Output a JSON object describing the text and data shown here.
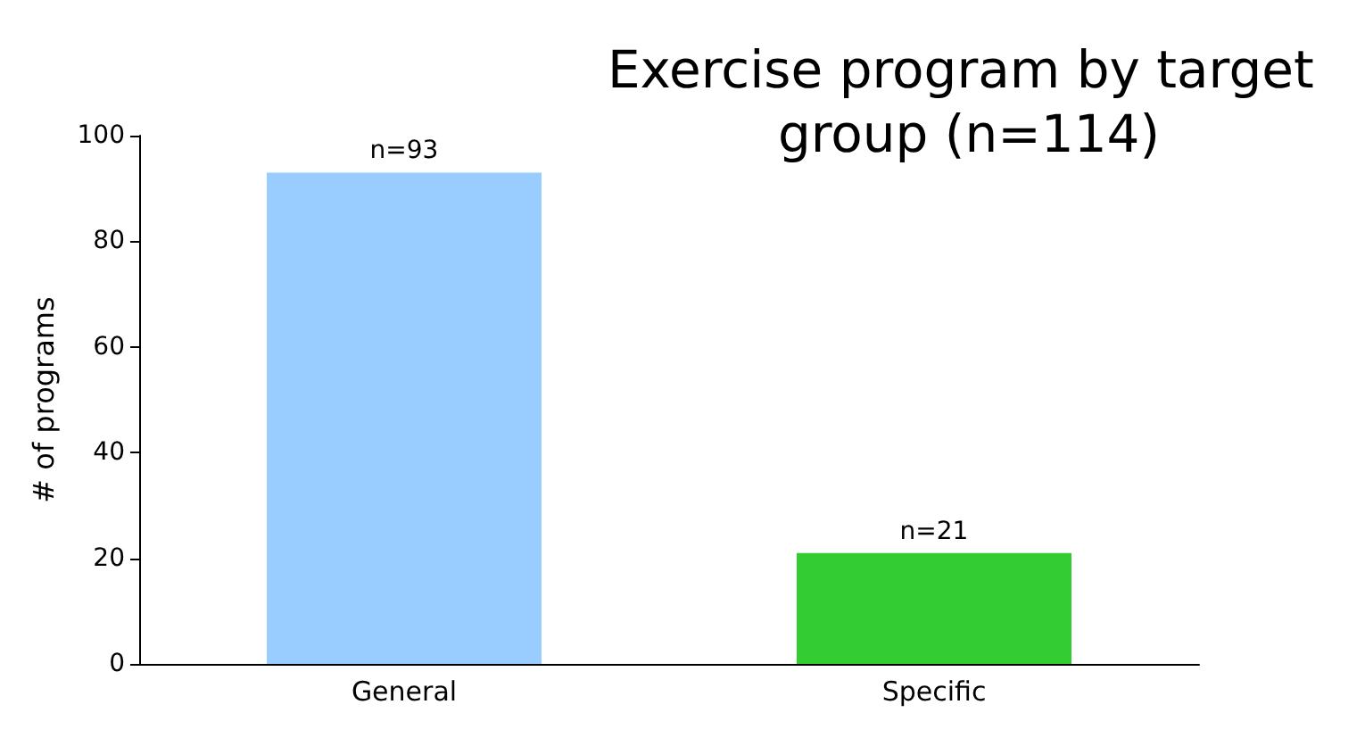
{
  "chart_data": {
    "type": "bar",
    "title": "Exercise program by target group (n=114)",
    "ylabel": "# of programs",
    "categories": [
      "General",
      "Specific"
    ],
    "values": [
      93,
      21
    ],
    "colors": [
      "#99ccff",
      "#33cc33"
    ],
    "value_labels": [
      "n=93",
      "n=21"
    ],
    "ylim": [
      0,
      100
    ],
    "yticks": [
      0,
      20,
      40,
      60,
      80,
      100
    ],
    "grid": false
  }
}
